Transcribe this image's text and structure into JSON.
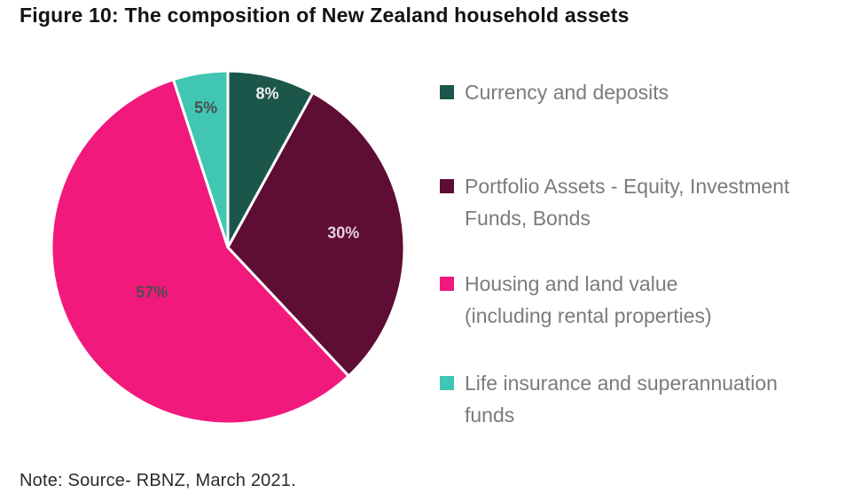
{
  "figure": {
    "title": "Figure 10: The composition of New Zealand household assets",
    "note": "Note: Source- RBNZ, March 2021."
  },
  "chart_data": {
    "type": "pie",
    "title": "The composition of New Zealand household assets",
    "unit": "percent",
    "start_angle_deg": 0,
    "direction": "clockwise",
    "slices": [
      {
        "label": "Currency and deposits",
        "value": 8,
        "display": "8%",
        "color": "#1c564a",
        "label_color": "#edf1ef",
        "label_radius": 0.9
      },
      {
        "label": "Portfolio Assets - Equity, Investment Funds, Bonds",
        "value": 30,
        "display": "30%",
        "color": "#5e0d34",
        "label_color": "#e5d2da",
        "label_radius": 0.66
      },
      {
        "label": "Housing and land value (including rental properties)",
        "value": 57,
        "display": "57%",
        "color": "#f2197c",
        "label_color": "#4d4d4d",
        "label_radius": 0.5
      },
      {
        "label": "Life insurance and superannuation funds",
        "value": 5,
        "display": "5%",
        "color": "#41c6b4",
        "label_color": "#4d4d4d",
        "label_radius": 0.8
      }
    ],
    "legend": {
      "position": "right",
      "items": [
        {
          "label": "Currency and deposits",
          "lines": [
            "Currency and deposits"
          ],
          "color": "#1c564a"
        },
        {
          "label": "Portfolio Assets - Equity, Investment Funds, Bonds",
          "lines": [
            "Portfolio Assets - Equity, Investment",
            "Funds, Bonds"
          ],
          "color": "#5e0d34"
        },
        {
          "label": "Housing and land value (including rental properties)",
          "lines": [
            "Housing and land value",
            "(including rental properties)"
          ],
          "color": "#f2197c"
        },
        {
          "label": "Life insurance and superannuation funds",
          "lines": [
            "Life insurance and superannuation",
            "funds"
          ],
          "color": "#41c6b4"
        }
      ]
    }
  }
}
